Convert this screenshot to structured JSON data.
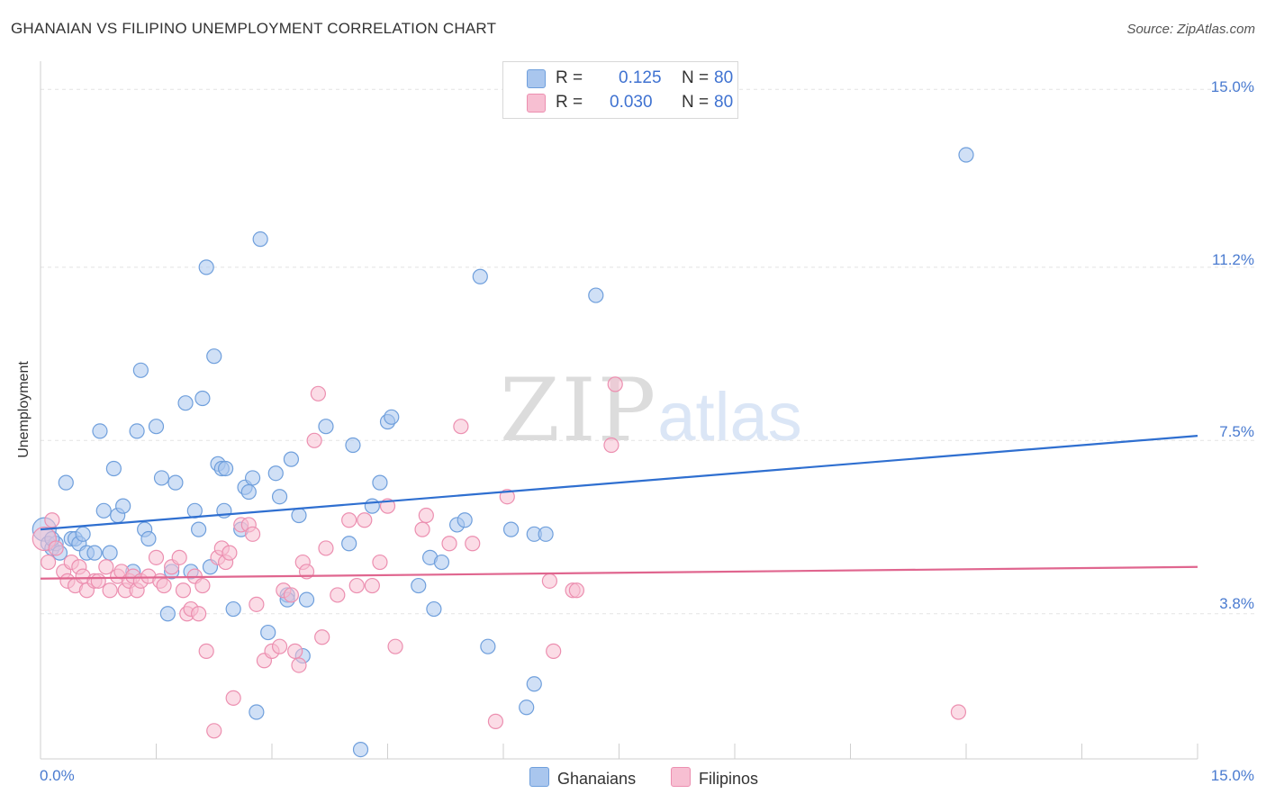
{
  "header": {
    "title": "GHANAIAN VS FILIPINO UNEMPLOYMENT CORRELATION CHART",
    "source": "Source: ZipAtlas.com"
  },
  "watermark": {
    "zip": "ZIP",
    "atlas": "atlas"
  },
  "stats": [
    {
      "r_label": "R =",
      "r_value": "0.125",
      "n_label": "N =",
      "n_value": "80"
    },
    {
      "r_label": "R =",
      "r_value": "0.030",
      "n_label": "N =",
      "n_value": "80"
    }
  ],
  "legend": {
    "ghanaians": "Ghanaians",
    "filipinos": "Filipinos"
  },
  "colors": {
    "ghanaian_fill": "#a9c6ee",
    "ghanaian_stroke": "#6f9fdc",
    "ghanaian_line": "#2f6fd0",
    "filipino_fill": "#f7bfd2",
    "filipino_stroke": "#ec8fb0",
    "filipino_line": "#e0668f",
    "tick_text": "#4a7bd0",
    "grid": "#e3e3e3"
  },
  "chart_data": {
    "type": "scatter",
    "title": "GHANAIAN VS FILIPINO UNEMPLOYMENT CORRELATION CHART",
    "xlabel": "",
    "ylabel": "Unemployment",
    "xlim": [
      0,
      15
    ],
    "ylim": [
      0.7,
      15.6
    ],
    "x_tick_labels": [
      "0.0%",
      "15.0%"
    ],
    "y_ticks": [
      3.8,
      7.5,
      11.2,
      15.0
    ],
    "y_tick_labels": [
      "3.8%",
      "7.5%",
      "11.2%",
      "15.0%"
    ],
    "grid": true,
    "legend_position": "bottom-center",
    "series": [
      {
        "name": "Ghanaians",
        "r": 0.125,
        "n": 80,
        "trend": {
          "x": [
            0,
            15
          ],
          "y": [
            5.6,
            7.6
          ]
        },
        "points": [
          [
            0.05,
            5.6
          ],
          [
            0.1,
            5.3
          ],
          [
            0.15,
            5.2
          ],
          [
            0.2,
            5.3
          ],
          [
            0.25,
            5.1
          ],
          [
            0.33,
            6.6
          ],
          [
            0.4,
            5.4
          ],
          [
            0.45,
            5.4
          ],
          [
            0.5,
            5.3
          ],
          [
            0.55,
            5.5
          ],
          [
            0.6,
            5.1
          ],
          [
            0.7,
            5.1
          ],
          [
            0.77,
            7.7
          ],
          [
            0.82,
            6.0
          ],
          [
            0.9,
            5.1
          ],
          [
            0.95,
            6.9
          ],
          [
            1.0,
            5.9
          ],
          [
            1.07,
            6.1
          ],
          [
            1.2,
            4.7
          ],
          [
            1.25,
            7.7
          ],
          [
            1.3,
            9.0
          ],
          [
            1.35,
            5.6
          ],
          [
            1.4,
            5.4
          ],
          [
            1.5,
            7.8
          ],
          [
            1.57,
            6.7
          ],
          [
            1.65,
            3.8
          ],
          [
            1.7,
            4.7
          ],
          [
            1.75,
            6.6
          ],
          [
            1.88,
            8.3
          ],
          [
            1.95,
            4.7
          ],
          [
            2.0,
            6.0
          ],
          [
            2.05,
            5.6
          ],
          [
            2.1,
            8.4
          ],
          [
            2.15,
            11.2
          ],
          [
            2.2,
            4.8
          ],
          [
            2.25,
            9.3
          ],
          [
            2.3,
            7.0
          ],
          [
            2.35,
            6.9
          ],
          [
            2.4,
            6.9
          ],
          [
            2.38,
            6.0
          ],
          [
            2.5,
            3.9
          ],
          [
            2.6,
            5.6
          ],
          [
            2.65,
            6.5
          ],
          [
            2.7,
            6.4
          ],
          [
            2.75,
            6.7
          ],
          [
            2.8,
            1.7
          ],
          [
            2.85,
            11.8
          ],
          [
            2.95,
            3.4
          ],
          [
            3.05,
            6.8
          ],
          [
            3.1,
            6.3
          ],
          [
            3.2,
            4.2
          ],
          [
            3.2,
            4.1
          ],
          [
            3.25,
            7.1
          ],
          [
            3.35,
            5.9
          ],
          [
            3.4,
            2.9
          ],
          [
            3.45,
            4.1
          ],
          [
            3.7,
            7.8
          ],
          [
            4.0,
            5.3
          ],
          [
            4.05,
            7.4
          ],
          [
            4.15,
            0.9
          ],
          [
            4.3,
            6.1
          ],
          [
            4.4,
            6.6
          ],
          [
            4.5,
            7.9
          ],
          [
            4.55,
            8.0
          ],
          [
            4.9,
            4.4
          ],
          [
            5.05,
            5.0
          ],
          [
            5.1,
            3.9
          ],
          [
            5.2,
            4.9
          ],
          [
            5.4,
            5.7
          ],
          [
            5.5,
            5.8
          ],
          [
            5.7,
            11.0
          ],
          [
            5.8,
            3.1
          ],
          [
            6.1,
            5.6
          ],
          [
            6.3,
            1.8
          ],
          [
            6.4,
            2.3
          ],
          [
            6.4,
            5.5
          ],
          [
            6.55,
            5.5
          ],
          [
            7.2,
            10.6
          ],
          [
            12.0,
            13.6
          ],
          [
            0.15,
            5.4
          ]
        ]
      },
      {
        "name": "Filipinos",
        "r": 0.03,
        "n": 80,
        "trend": {
          "x": [
            0,
            15
          ],
          "y": [
            4.55,
            4.8
          ]
        },
        "points": [
          [
            0.05,
            5.4
          ],
          [
            0.1,
            4.9
          ],
          [
            0.15,
            5.8
          ],
          [
            0.2,
            5.2
          ],
          [
            0.3,
            4.7
          ],
          [
            0.35,
            4.5
          ],
          [
            0.4,
            4.9
          ],
          [
            0.45,
            4.4
          ],
          [
            0.5,
            4.8
          ],
          [
            0.55,
            4.6
          ],
          [
            0.6,
            4.3
          ],
          [
            0.7,
            4.5
          ],
          [
            0.75,
            4.5
          ],
          [
            0.85,
            4.8
          ],
          [
            0.9,
            4.3
          ],
          [
            1.0,
            4.6
          ],
          [
            1.05,
            4.7
          ],
          [
            1.1,
            4.3
          ],
          [
            1.15,
            4.5
          ],
          [
            1.2,
            4.6
          ],
          [
            1.25,
            4.3
          ],
          [
            1.3,
            4.5
          ],
          [
            1.4,
            4.6
          ],
          [
            1.5,
            5.0
          ],
          [
            1.55,
            4.5
          ],
          [
            1.6,
            4.4
          ],
          [
            1.7,
            4.8
          ],
          [
            1.8,
            5.0
          ],
          [
            1.85,
            4.3
          ],
          [
            1.9,
            3.8
          ],
          [
            1.95,
            3.9
          ],
          [
            2.0,
            4.6
          ],
          [
            2.05,
            3.8
          ],
          [
            2.1,
            4.4
          ],
          [
            2.15,
            3.0
          ],
          [
            2.25,
            1.3
          ],
          [
            2.3,
            5.0
          ],
          [
            2.35,
            5.2
          ],
          [
            2.4,
            4.9
          ],
          [
            2.45,
            5.1
          ],
          [
            2.5,
            2.0
          ],
          [
            2.6,
            5.7
          ],
          [
            2.7,
            5.7
          ],
          [
            2.75,
            5.5
          ],
          [
            2.8,
            4.0
          ],
          [
            2.9,
            2.8
          ],
          [
            3.0,
            3.0
          ],
          [
            3.1,
            3.1
          ],
          [
            3.15,
            4.3
          ],
          [
            3.25,
            4.2
          ],
          [
            3.3,
            3.0
          ],
          [
            3.35,
            2.7
          ],
          [
            3.4,
            4.9
          ],
          [
            3.45,
            4.7
          ],
          [
            3.55,
            7.5
          ],
          [
            3.6,
            8.5
          ],
          [
            3.65,
            3.3
          ],
          [
            3.7,
            5.2
          ],
          [
            3.85,
            4.2
          ],
          [
            4.0,
            5.8
          ],
          [
            4.1,
            4.4
          ],
          [
            4.2,
            5.8
          ],
          [
            4.3,
            4.4
          ],
          [
            4.4,
            4.9
          ],
          [
            4.5,
            6.1
          ],
          [
            4.6,
            3.1
          ],
          [
            4.95,
            5.6
          ],
          [
            5.0,
            5.9
          ],
          [
            5.3,
            5.3
          ],
          [
            5.45,
            7.8
          ],
          [
            5.6,
            5.3
          ],
          [
            5.9,
            1.5
          ],
          [
            6.05,
            6.3
          ],
          [
            6.6,
            4.5
          ],
          [
            6.65,
            3.0
          ],
          [
            6.9,
            4.3
          ],
          [
            6.95,
            4.3
          ],
          [
            7.4,
            7.4
          ],
          [
            7.45,
            8.7
          ],
          [
            11.9,
            1.7
          ]
        ]
      }
    ]
  }
}
